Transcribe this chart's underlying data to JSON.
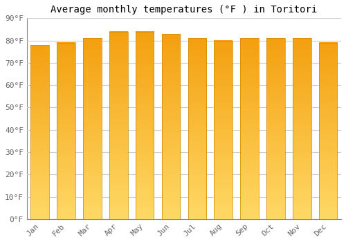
{
  "title": "Average monthly temperatures (°F ) in Toritori",
  "months": [
    "Jan",
    "Feb",
    "Mar",
    "Apr",
    "May",
    "Jun",
    "Jul",
    "Aug",
    "Sep",
    "Oct",
    "Nov",
    "Dec"
  ],
  "values": [
    78,
    79,
    81,
    84,
    84,
    83,
    81,
    80,
    81,
    81,
    81,
    79
  ],
  "ylim": [
    0,
    90
  ],
  "yticks": [
    0,
    10,
    20,
    30,
    40,
    50,
    60,
    70,
    80,
    90
  ],
  "ytick_labels": [
    "0°F",
    "10°F",
    "20°F",
    "30°F",
    "40°F",
    "50°F",
    "60°F",
    "70°F",
    "80°F",
    "90°F"
  ],
  "bg_color": "#FFFFFF",
  "grid_color": "#CCCCCC",
  "bar_color_light": "#FFD966",
  "bar_color_dark": "#F4A010",
  "bar_edge_color": "#CC8800",
  "title_fontsize": 10,
  "tick_fontsize": 8,
  "bar_width": 0.7,
  "fig_width": 5.0,
  "fig_height": 3.5,
  "dpi": 100
}
